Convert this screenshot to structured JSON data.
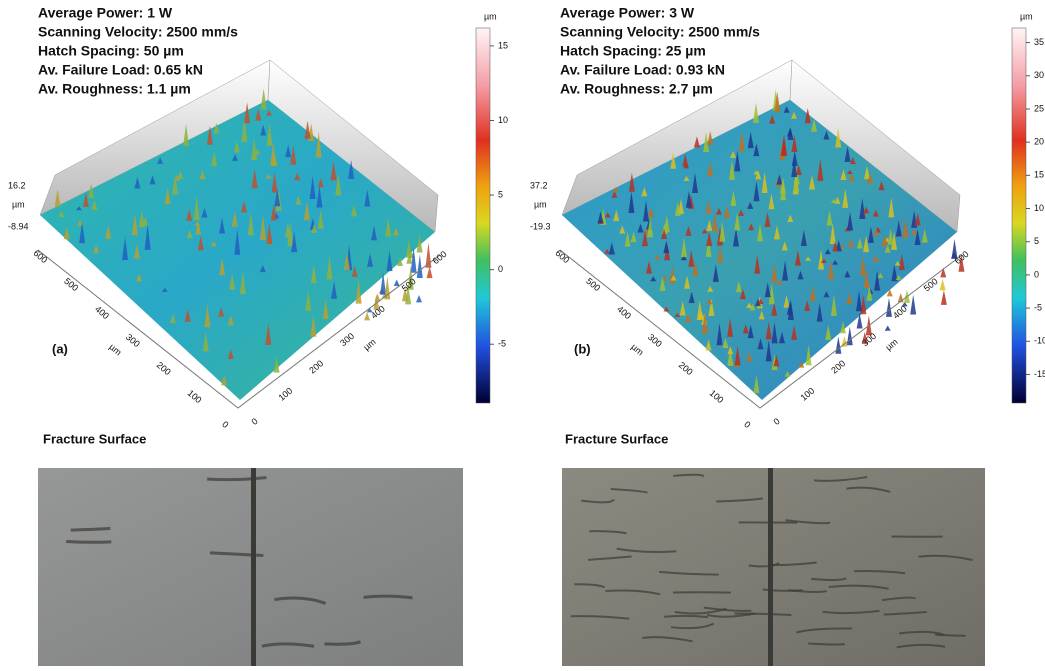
{
  "panels": [
    {
      "info": [
        "Average Power: 1 W",
        "Scanning Velocity: 2500 mm/s",
        "Hatch Spacing: 50 µm",
        "Av. Failure Load: 0.65 kN",
        "Av. Roughness: 1.1 µm"
      ],
      "label": "(a)",
      "z_max": 16.2,
      "z_unit": "µm",
      "z_min": -8.94,
      "colorbar_unit": "µm",
      "colorbar_ticks": [
        15,
        10,
        5,
        0,
        -5
      ],
      "left_ticks": [
        600,
        500,
        400,
        300,
        200,
        100,
        0
      ],
      "left_unit": "µm",
      "right_ticks": [
        0,
        100,
        200,
        300,
        400,
        500,
        600
      ],
      "right_unit": "µm",
      "photo_title": "Fracture Surface"
    },
    {
      "info": [
        "Average Power: 3 W",
        "Scanning Velocity: 2500 mm/s",
        "Hatch Spacing: 25 µm",
        "Av. Failure Load: 0.93 kN",
        "Av. Roughness: 2.7 µm"
      ],
      "label": "(b)",
      "z_max": 37.2,
      "z_unit": "µm",
      "z_min": -19.3,
      "colorbar_unit": "µm",
      "colorbar_ticks": [
        35,
        30,
        25,
        20,
        15,
        10,
        5,
        0,
        -5,
        -10,
        -15
      ],
      "left_ticks": [
        600,
        500,
        400,
        300,
        200,
        100,
        0
      ],
      "left_unit": "µm",
      "right_ticks": [
        0,
        100,
        200,
        300,
        400,
        500,
        600
      ],
      "right_unit": "µm",
      "photo_title": "Fracture Surface"
    }
  ]
}
